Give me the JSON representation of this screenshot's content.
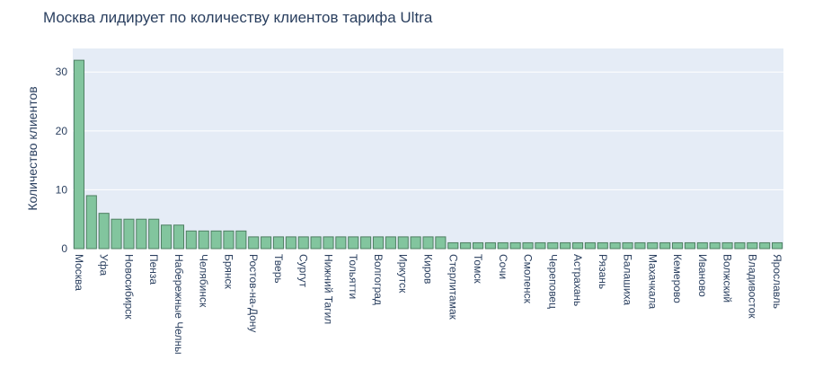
{
  "chart_data": {
    "type": "bar",
    "title": "Москва лидирует по количеству клиентов тарифа Ultra",
    "xlabel": "",
    "ylabel": "Количество клиентов",
    "ylim": [
      0,
      34
    ],
    "yticks": [
      0,
      10,
      20,
      30
    ],
    "grid": true,
    "legend": "none",
    "colors": {
      "bar_fill": "#82c59e",
      "bar_stroke": "#4f7f63",
      "plot_bg": "#e5ecf6",
      "grid": "#ffffff",
      "text": "#2a3f5f"
    },
    "categories": [
      "Москва",
      "Уфа",
      "Новосибирск",
      "Пенза",
      "Набережные Челны",
      "Челябинск",
      "Брянск",
      "Ростов-на-Дону",
      "Тверь",
      "Сургут",
      "Нижний Тагил",
      "Тольятти",
      "Волгоград",
      "Иркутск",
      "Киров",
      "Стерлитамак",
      "Томск",
      "Сочи",
      "Смоленск",
      "Череповец",
      "Астрахань",
      "Рязань",
      "Балашиха",
      "Махачкала",
      "Кемерово",
      "Иваново",
      "Волжский",
      "Владивосток",
      "Ярославль"
    ],
    "bars": [
      {
        "label": "Москва",
        "value": 32,
        "tick": true
      },
      {
        "label": "",
        "value": 9,
        "tick": false
      },
      {
        "label": "Уфа",
        "value": 6,
        "tick": true
      },
      {
        "label": "",
        "value": 5,
        "tick": false
      },
      {
        "label": "Новосибирск",
        "value": 5,
        "tick": true
      },
      {
        "label": "",
        "value": 5,
        "tick": false
      },
      {
        "label": "Пенза",
        "value": 5,
        "tick": true
      },
      {
        "label": "",
        "value": 4,
        "tick": false
      },
      {
        "label": "Набережные Челны",
        "value": 4,
        "tick": true
      },
      {
        "label": "",
        "value": 3,
        "tick": false
      },
      {
        "label": "Челябинск",
        "value": 3,
        "tick": true
      },
      {
        "label": "",
        "value": 3,
        "tick": false
      },
      {
        "label": "Брянск",
        "value": 3,
        "tick": true
      },
      {
        "label": "",
        "value": 3,
        "tick": false
      },
      {
        "label": "Ростов-на-Дону",
        "value": 2,
        "tick": true
      },
      {
        "label": "",
        "value": 2,
        "tick": false
      },
      {
        "label": "Тверь",
        "value": 2,
        "tick": true
      },
      {
        "label": "",
        "value": 2,
        "tick": false
      },
      {
        "label": "Сургут",
        "value": 2,
        "tick": true
      },
      {
        "label": "",
        "value": 2,
        "tick": false
      },
      {
        "label": "Нижний Тагил",
        "value": 2,
        "tick": true
      },
      {
        "label": "",
        "value": 2,
        "tick": false
      },
      {
        "label": "Тольятти",
        "value": 2,
        "tick": true
      },
      {
        "label": "",
        "value": 2,
        "tick": false
      },
      {
        "label": "Волгоград",
        "value": 2,
        "tick": true
      },
      {
        "label": "",
        "value": 2,
        "tick": false
      },
      {
        "label": "Иркутск",
        "value": 2,
        "tick": true
      },
      {
        "label": "",
        "value": 2,
        "tick": false
      },
      {
        "label": "Киров",
        "value": 2,
        "tick": true
      },
      {
        "label": "",
        "value": 2,
        "tick": false
      },
      {
        "label": "Стерлитамак",
        "value": 1,
        "tick": true
      },
      {
        "label": "",
        "value": 1,
        "tick": false
      },
      {
        "label": "Томск",
        "value": 1,
        "tick": true
      },
      {
        "label": "",
        "value": 1,
        "tick": false
      },
      {
        "label": "Сочи",
        "value": 1,
        "tick": true
      },
      {
        "label": "",
        "value": 1,
        "tick": false
      },
      {
        "label": "Смоленск",
        "value": 1,
        "tick": true
      },
      {
        "label": "",
        "value": 1,
        "tick": false
      },
      {
        "label": "Череповец",
        "value": 1,
        "tick": true
      },
      {
        "label": "",
        "value": 1,
        "tick": false
      },
      {
        "label": "Астрахань",
        "value": 1,
        "tick": true
      },
      {
        "label": "",
        "value": 1,
        "tick": false
      },
      {
        "label": "Рязань",
        "value": 1,
        "tick": true
      },
      {
        "label": "",
        "value": 1,
        "tick": false
      },
      {
        "label": "Балашиха",
        "value": 1,
        "tick": true
      },
      {
        "label": "",
        "value": 1,
        "tick": false
      },
      {
        "label": "Махачкала",
        "value": 1,
        "tick": true
      },
      {
        "label": "",
        "value": 1,
        "tick": false
      },
      {
        "label": "Кемерово",
        "value": 1,
        "tick": true
      },
      {
        "label": "",
        "value": 1,
        "tick": false
      },
      {
        "label": "Иваново",
        "value": 1,
        "tick": true
      },
      {
        "label": "",
        "value": 1,
        "tick": false
      },
      {
        "label": "Волжский",
        "value": 1,
        "tick": true
      },
      {
        "label": "",
        "value": 1,
        "tick": false
      },
      {
        "label": "Владивосток",
        "value": 1,
        "tick": true
      },
      {
        "label": "",
        "value": 1,
        "tick": false
      },
      {
        "label": "Ярославль",
        "value": 1,
        "tick": true
      }
    ]
  }
}
